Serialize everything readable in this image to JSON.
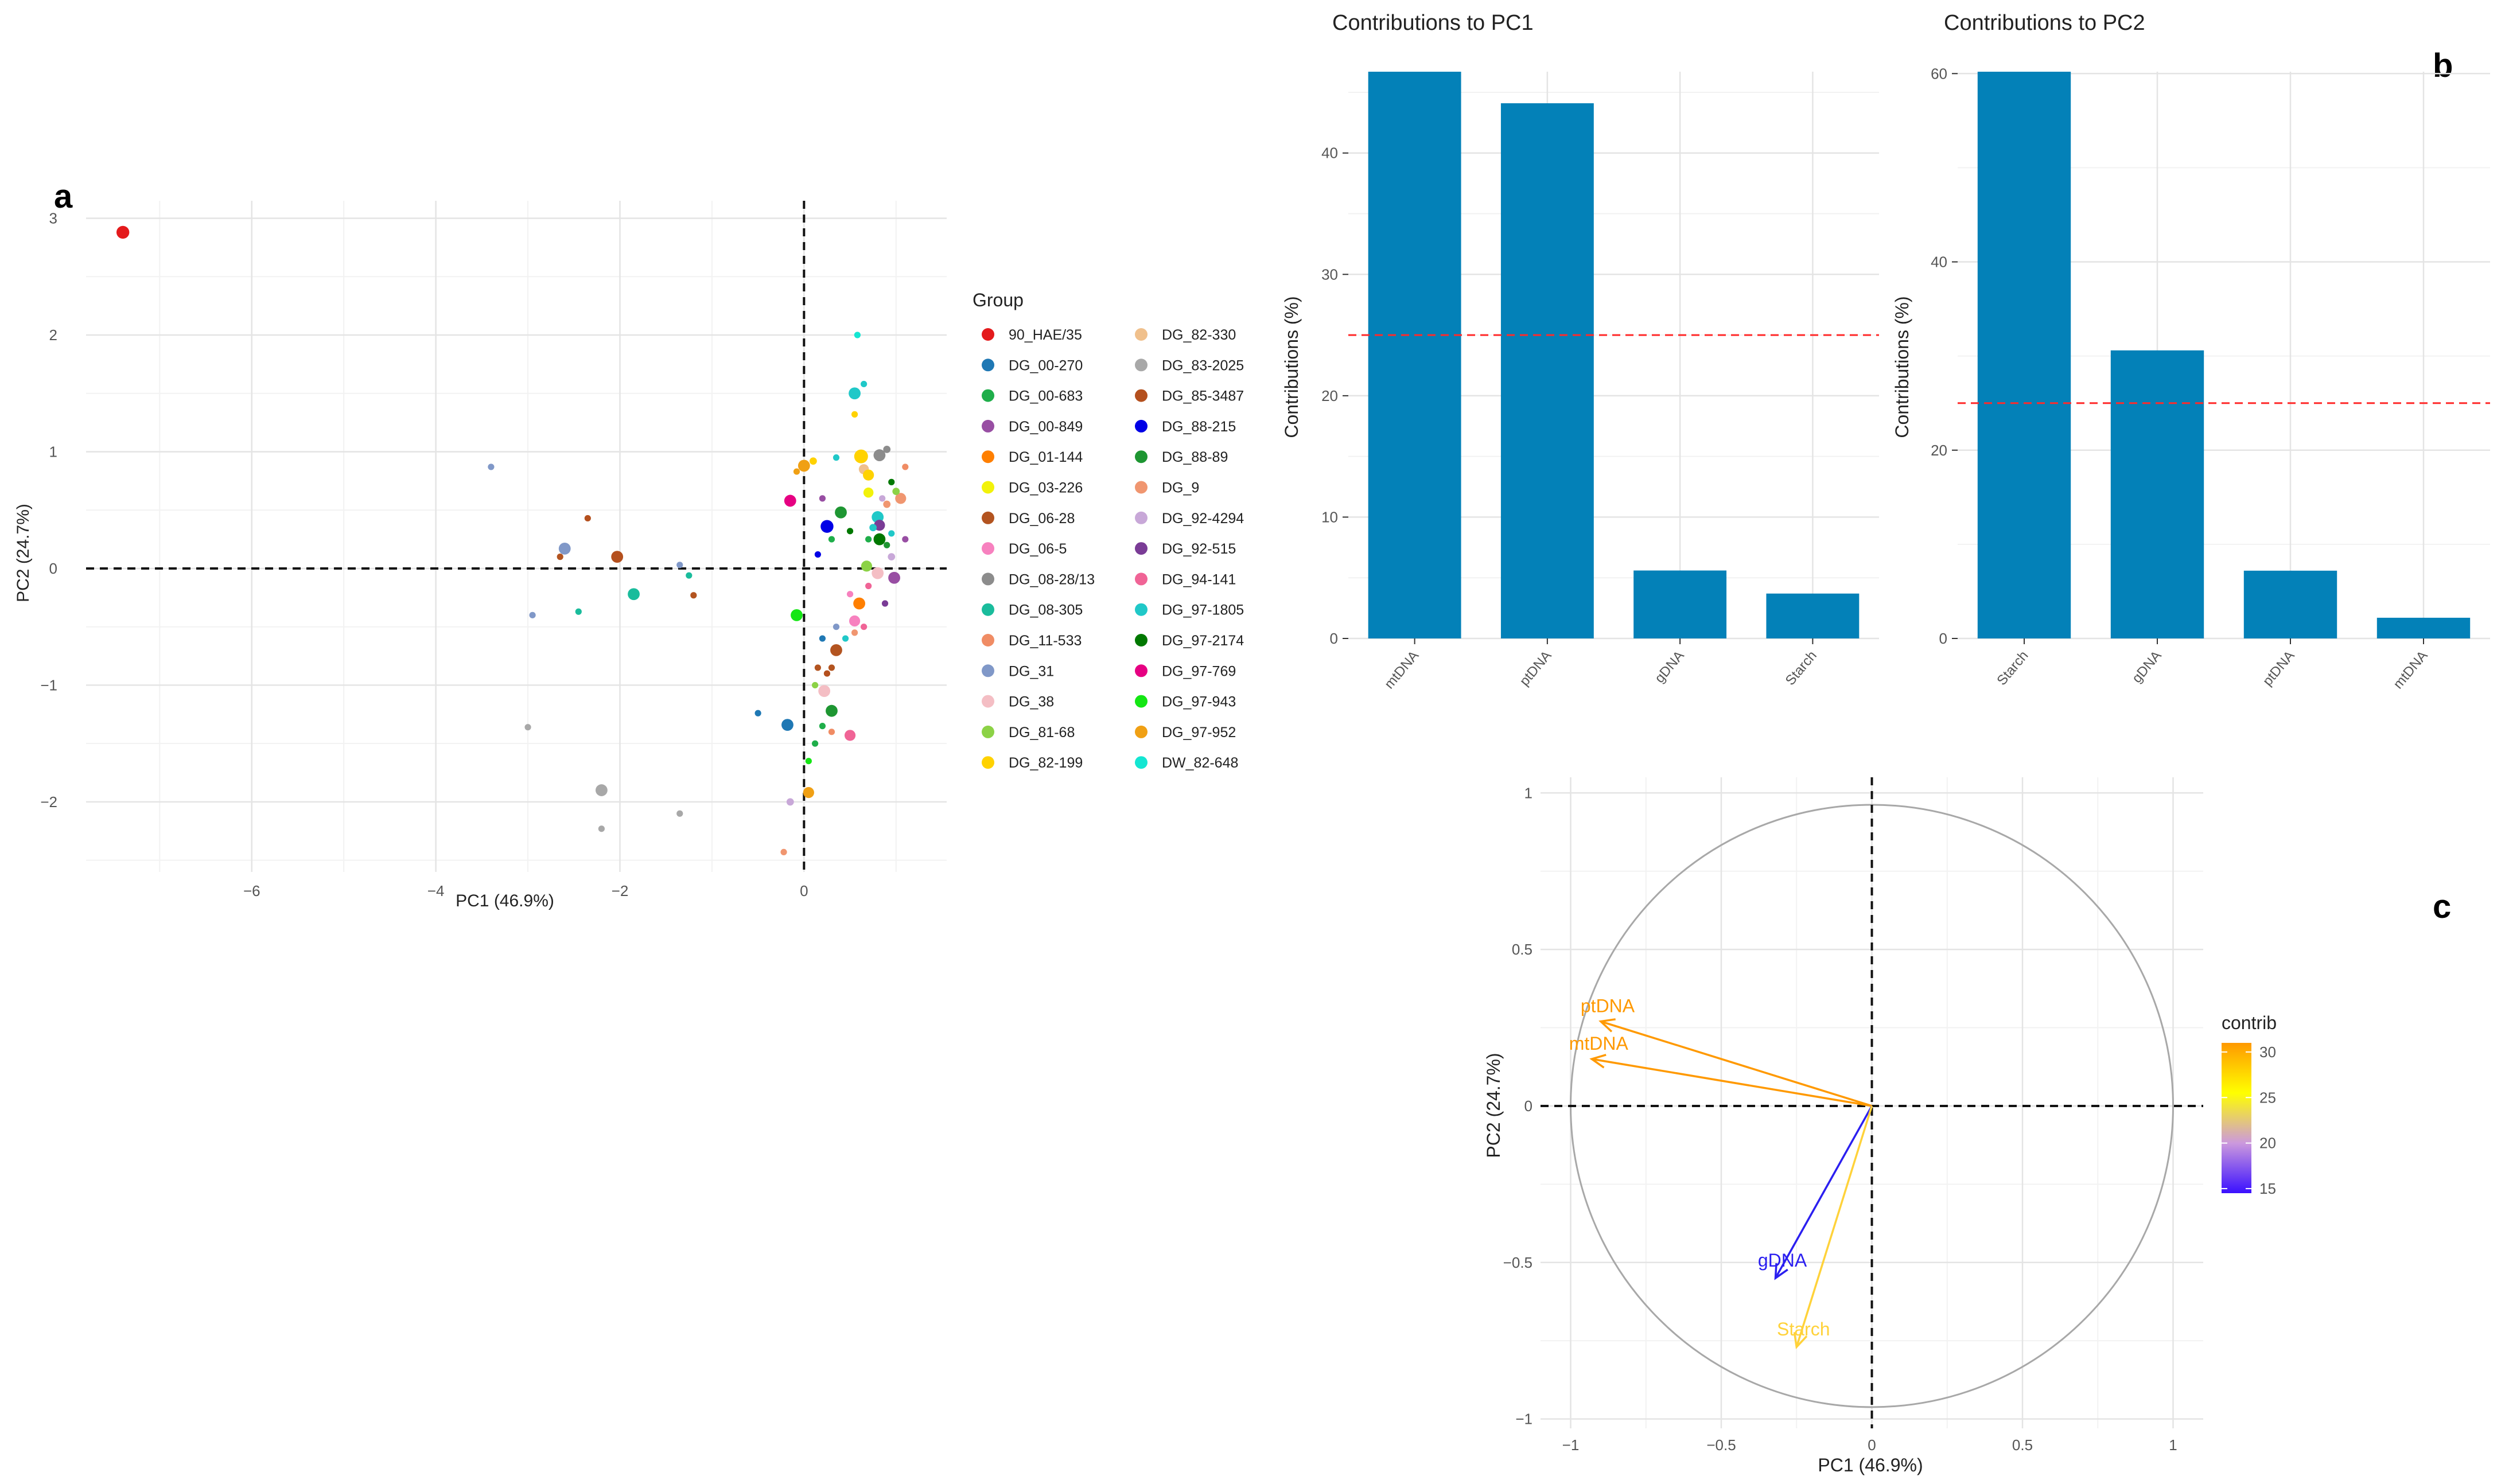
{
  "panels": {
    "a": "a",
    "b": "b",
    "c": "c"
  },
  "chart_data": [
    {
      "id": "scatter",
      "type": "scatter",
      "panel": "a",
      "title": "",
      "xlabel": "PC1 (46.9%)",
      "ylabel": "PC2 (24.7%)",
      "xlim": [
        -7.8,
        1.55
      ],
      "ylim": [
        -2.6,
        3.15
      ],
      "xticks": [
        -6,
        -4,
        -2,
        0
      ],
      "yticks": [
        -2,
        -1,
        0,
        1,
        2,
        3
      ],
      "grid": true,
      "reference_lines": {
        "x": 0,
        "y": 0,
        "style": "dashed"
      },
      "legend_title": "Group",
      "legend_position": "right",
      "groups": [
        {
          "name": "90_HAE/35",
          "color": "#e41a1c"
        },
        {
          "name": "DG_00-270",
          "color": "#1f78b4"
        },
        {
          "name": "DG_00-683",
          "color": "#1fae4a"
        },
        {
          "name": "DG_00-849",
          "color": "#984ea3"
        },
        {
          "name": "DG_01-144",
          "color": "#ff7f00"
        },
        {
          "name": "DG_03-226",
          "color": "#f2f20a"
        },
        {
          "name": "DG_06-28",
          "color": "#b35420"
        },
        {
          "name": "DG_06-5",
          "color": "#f781bf"
        },
        {
          "name": "DG_08-28/13",
          "color": "#8c8c8c"
        },
        {
          "name": "DG_08-305",
          "color": "#1abc9c"
        },
        {
          "name": "DG_11-533",
          "color": "#f08c64"
        },
        {
          "name": "DG_31",
          "color": "#8098c8"
        },
        {
          "name": "DG_38",
          "color": "#f4bec4"
        },
        {
          "name": "DG_81-68",
          "color": "#8cd246"
        },
        {
          "name": "DG_82-199",
          "color": "#ffd200"
        },
        {
          "name": "DG_82-330",
          "color": "#f0c08c"
        },
        {
          "name": "DG_83-2025",
          "color": "#a8a8a8"
        },
        {
          "name": "DG_85-3487",
          "color": "#b4501e"
        },
        {
          "name": "DG_88-215",
          "color": "#0000e6"
        },
        {
          "name": "DG_88-89",
          "color": "#1e9632"
        },
        {
          "name": "DG_9",
          "color": "#f09670"
        },
        {
          "name": "DG_92-4294",
          "color": "#c8a8d8"
        },
        {
          "name": "DG_92-515",
          "color": "#7a3c96"
        },
        {
          "name": "DG_94-141",
          "color": "#f06496"
        },
        {
          "name": "DG_97-1805",
          "color": "#20c8c8"
        },
        {
          "name": "DG_97-2174",
          "color": "#007800"
        },
        {
          "name": "DG_97-769",
          "color": "#e60082"
        },
        {
          "name": "DG_97-943",
          "color": "#14e614"
        },
        {
          "name": "DG_97-952",
          "color": "#f0a014"
        },
        {
          "name": "DW_82-648",
          "color": "#14e6d2"
        }
      ],
      "points": [
        {
          "x": -7.4,
          "y": 2.88,
          "g": 0,
          "s": 1.4
        },
        {
          "x": -3.4,
          "y": 0.87,
          "g": 11,
          "s": 0.7
        },
        {
          "x": -2.6,
          "y": 0.17,
          "g": 11,
          "s": 1.3
        },
        {
          "x": -2.65,
          "y": 0.1,
          "g": 6,
          "s": 0.7
        },
        {
          "x": -2.35,
          "y": 0.43,
          "g": 17,
          "s": 0.7
        },
        {
          "x": -2.03,
          "y": 0.1,
          "g": 17,
          "s": 1.3
        },
        {
          "x": -1.85,
          "y": -0.22,
          "g": 9,
          "s": 1.3
        },
        {
          "x": -2.45,
          "y": -0.37,
          "g": 9,
          "s": 0.7
        },
        {
          "x": -2.95,
          "y": -0.4,
          "g": 11,
          "s": 0.7
        },
        {
          "x": -1.35,
          "y": 0.03,
          "g": 11,
          "s": 0.7
        },
        {
          "x": -1.25,
          "y": -0.06,
          "g": 9,
          "s": 0.7
        },
        {
          "x": -1.2,
          "y": -0.23,
          "g": 6,
          "s": 0.7
        },
        {
          "x": -3.0,
          "y": -1.36,
          "g": 16,
          "s": 0.7
        },
        {
          "x": -2.2,
          "y": -1.9,
          "g": 16,
          "s": 1.3
        },
        {
          "x": -2.2,
          "y": -2.23,
          "g": 16,
          "s": 0.7
        },
        {
          "x": -1.35,
          "y": -2.1,
          "g": 16,
          "s": 0.7
        },
        {
          "x": -0.5,
          "y": -1.24,
          "g": 1,
          "s": 0.7
        },
        {
          "x": -0.18,
          "y": -1.34,
          "g": 1,
          "s": 1.3
        },
        {
          "x": -0.15,
          "y": -2.0,
          "g": 21,
          "s": 0.8
        },
        {
          "x": 0.05,
          "y": -1.92,
          "g": 28,
          "s": 1.2
        },
        {
          "x": -0.22,
          "y": -2.43,
          "g": 20,
          "s": 0.7
        },
        {
          "x": -0.15,
          "y": 0.58,
          "g": 26,
          "s": 1.3
        },
        {
          "x": -0.08,
          "y": 0.83,
          "g": 28,
          "s": 0.7
        },
        {
          "x": 0.0,
          "y": 0.88,
          "g": 28,
          "s": 1.3
        },
        {
          "x": 0.1,
          "y": 0.92,
          "g": 14,
          "s": 0.8
        },
        {
          "x": 0.2,
          "y": 0.6,
          "g": 3,
          "s": 0.7
        },
        {
          "x": 0.25,
          "y": 0.36,
          "g": 18,
          "s": 1.4
        },
        {
          "x": 0.4,
          "y": 0.48,
          "g": 19,
          "s": 1.3
        },
        {
          "x": 0.35,
          "y": 0.95,
          "g": 24,
          "s": 0.7
        },
        {
          "x": 0.15,
          "y": 0.12,
          "g": 18,
          "s": 0.7
        },
        {
          "x": 0.3,
          "y": 0.25,
          "g": 2,
          "s": 0.7
        },
        {
          "x": 0.5,
          "y": 0.32,
          "g": 25,
          "s": 0.7
        },
        {
          "x": 0.55,
          "y": 1.32,
          "g": 14,
          "s": 0.7
        },
        {
          "x": 0.55,
          "y": 1.5,
          "g": 24,
          "s": 1.3
        },
        {
          "x": 0.65,
          "y": 1.58,
          "g": 24,
          "s": 0.7
        },
        {
          "x": 0.58,
          "y": 2.0,
          "g": 29,
          "s": 0.7
        },
        {
          "x": 0.62,
          "y": 0.96,
          "g": 14,
          "s": 1.5
        },
        {
          "x": 0.65,
          "y": 0.85,
          "g": 15,
          "s": 1.1
        },
        {
          "x": 0.7,
          "y": 0.8,
          "g": 14,
          "s": 1.2
        },
        {
          "x": 0.7,
          "y": 0.65,
          "g": 5,
          "s": 1.1
        },
        {
          "x": 0.82,
          "y": 0.97,
          "g": 8,
          "s": 1.3
        },
        {
          "x": 0.9,
          "y": 1.02,
          "g": 8,
          "s": 0.8
        },
        {
          "x": 0.85,
          "y": 0.6,
          "g": 21,
          "s": 0.7
        },
        {
          "x": 0.8,
          "y": 0.44,
          "g": 24,
          "s": 1.3
        },
        {
          "x": 0.9,
          "y": 0.55,
          "g": 20,
          "s": 0.8
        },
        {
          "x": 0.95,
          "y": 0.74,
          "g": 25,
          "s": 0.7
        },
        {
          "x": 1.05,
          "y": 0.6,
          "g": 20,
          "s": 1.2
        },
        {
          "x": 1.0,
          "y": 0.66,
          "g": 13,
          "s": 0.8
        },
        {
          "x": 1.1,
          "y": 0.87,
          "g": 10,
          "s": 0.7
        },
        {
          "x": 0.82,
          "y": 0.37,
          "g": 22,
          "s": 1.2
        },
        {
          "x": 0.75,
          "y": 0.35,
          "g": 24,
          "s": 0.8
        },
        {
          "x": 0.7,
          "y": 0.25,
          "g": 2,
          "s": 0.7
        },
        {
          "x": 0.82,
          "y": 0.25,
          "g": 25,
          "s": 1.3
        },
        {
          "x": 0.9,
          "y": 0.2,
          "g": 19,
          "s": 0.7
        },
        {
          "x": 0.95,
          "y": 0.1,
          "g": 21,
          "s": 0.8
        },
        {
          "x": 0.95,
          "y": 0.3,
          "g": 24,
          "s": 0.7
        },
        {
          "x": 1.1,
          "y": 0.25,
          "g": 3,
          "s": 0.7
        },
        {
          "x": 0.68,
          "y": 0.02,
          "g": 13,
          "s": 1.2
        },
        {
          "x": 0.8,
          "y": -0.04,
          "g": 12,
          "s": 1.3
        },
        {
          "x": 0.98,
          "y": -0.08,
          "g": 3,
          "s": 1.3
        },
        {
          "x": 0.7,
          "y": -0.15,
          "g": 23,
          "s": 0.7
        },
        {
          "x": 0.88,
          "y": -0.3,
          "g": 22,
          "s": 0.7
        },
        {
          "x": 0.5,
          "y": -0.22,
          "g": 7,
          "s": 0.7
        },
        {
          "x": 0.6,
          "y": -0.3,
          "g": 4,
          "s": 1.3
        },
        {
          "x": 0.55,
          "y": -0.45,
          "g": 7,
          "s": 1.2
        },
        {
          "x": 0.65,
          "y": -0.5,
          "g": 23,
          "s": 0.7
        },
        {
          "x": 0.55,
          "y": -0.55,
          "g": 20,
          "s": 0.7
        },
        {
          "x": 0.45,
          "y": -0.6,
          "g": 24,
          "s": 0.7
        },
        {
          "x": 0.35,
          "y": -0.7,
          "g": 6,
          "s": 1.3
        },
        {
          "x": 0.2,
          "y": -0.6,
          "g": 1,
          "s": 0.7
        },
        {
          "x": 0.35,
          "y": -0.5,
          "g": 11,
          "s": 0.7
        },
        {
          "x": -0.08,
          "y": -0.4,
          "g": 27,
          "s": 1.3
        },
        {
          "x": 0.15,
          "y": -0.85,
          "g": 6,
          "s": 0.7
        },
        {
          "x": 0.25,
          "y": -0.9,
          "g": 17,
          "s": 0.7
        },
        {
          "x": 0.3,
          "y": -0.85,
          "g": 6,
          "s": 0.7
        },
        {
          "x": 0.12,
          "y": -1.0,
          "g": 13,
          "s": 0.7
        },
        {
          "x": 0.22,
          "y": -1.05,
          "g": 12,
          "s": 1.3
        },
        {
          "x": 0.3,
          "y": -1.22,
          "g": 19,
          "s": 1.3
        },
        {
          "x": 0.2,
          "y": -1.35,
          "g": 2,
          "s": 0.7
        },
        {
          "x": 0.3,
          "y": -1.4,
          "g": 10,
          "s": 0.7
        },
        {
          "x": 0.5,
          "y": -1.43,
          "g": 23,
          "s": 1.2
        },
        {
          "x": 0.12,
          "y": -1.5,
          "g": 2,
          "s": 0.7
        },
        {
          "x": 0.05,
          "y": -1.65,
          "g": 27,
          "s": 0.7
        }
      ]
    },
    {
      "id": "pc1_bar",
      "type": "bar",
      "panel": "b",
      "title": "Contributions to PC1",
      "xlabel": "",
      "ylabel": "Contributions (%)",
      "categories": [
        "mtDNA",
        "ptDNA",
        "gDNA",
        "Starch"
      ],
      "values": [
        46.7,
        44.1,
        5.6,
        3.7
      ],
      "ylim": [
        0,
        46.7
      ],
      "yticks": [
        0,
        10,
        20,
        30,
        40
      ],
      "reference_line": 25,
      "bar_color": "#0381b8",
      "grid": true
    },
    {
      "id": "pc2_bar",
      "type": "bar",
      "panel": "b",
      "title": "Contributions to PC2",
      "xlabel": "",
      "ylabel": "Contributions (%)",
      "categories": [
        "Starch",
        "gDNA",
        "ptDNA",
        "mtDNA"
      ],
      "values": [
        60.2,
        30.6,
        7.2,
        2.2
      ],
      "ylim": [
        0,
        60.2
      ],
      "yticks": [
        0,
        20,
        40,
        60
      ],
      "reference_line": 25,
      "bar_color": "#0381b8",
      "grid": true
    },
    {
      "id": "circle",
      "type": "scatter",
      "subtype": "correlation-circle",
      "panel": "c",
      "title": "",
      "xlabel": "PC1 (46.9%)",
      "ylabel": "PC2 (24.7%)",
      "xlim": [
        -1.1,
        1.1
      ],
      "ylim": [
        -1.03,
        1.05
      ],
      "xticks": [
        -1,
        -0.5,
        0,
        0.5,
        1
      ],
      "xtick_labels": [
        "−1",
        "−0.5",
        "0",
        "0.5",
        "1"
      ],
      "yticks": [
        -1,
        -0.5,
        0,
        0.5,
        1
      ],
      "ytick_labels": [
        "−1",
        "−0.5",
        "0",
        "0.5",
        "1"
      ],
      "grid": true,
      "vectors": [
        {
          "name": "ptDNA",
          "x": -0.9,
          "y": 0.27,
          "contrib": 31.5,
          "color": "#ff9900"
        },
        {
          "name": "mtDNA",
          "x": -0.93,
          "y": 0.15,
          "contrib": 30.9,
          "color": "#ff9900"
        },
        {
          "name": "gDNA",
          "x": -0.32,
          "y": -0.55,
          "contrib": 14.8,
          "color": "#2b1ff0"
        },
        {
          "name": "Starch",
          "x": -0.25,
          "y": -0.77,
          "contrib": 26.5,
          "color": "#ffd23a"
        }
      ],
      "colorbar": {
        "title": "contrib",
        "min": 14.5,
        "max": 31,
        "ticks": [
          15,
          20,
          25,
          30
        ],
        "colors": [
          "#3a10ff",
          "#cc99dd",
          "#ffff00",
          "#ff9900"
        ]
      }
    }
  ]
}
